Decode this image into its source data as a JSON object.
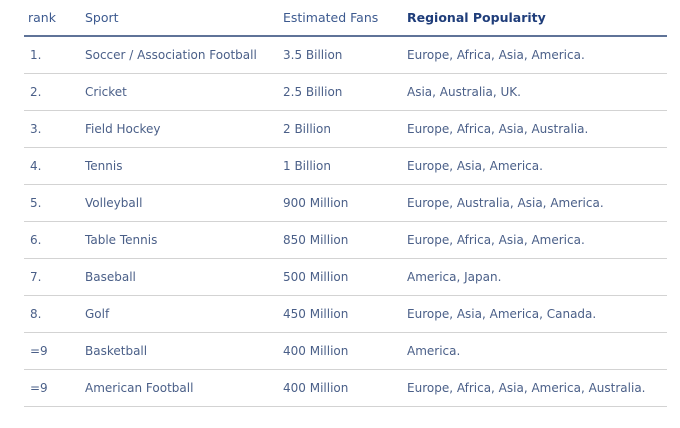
{
  "table": {
    "headers": {
      "rank": "rank",
      "sport": "Sport",
      "fans": "Estimated Fans",
      "region": "Regional Popularity"
    },
    "rows": [
      {
        "rank": "1.",
        "sport": "Soccer / Association Football",
        "fans": "3.5 Billion",
        "region": "Europe, Africa, Asia, America."
      },
      {
        "rank": "2.",
        "sport": "Cricket",
        "fans": "2.5 Billion",
        "region": "Asia, Australia, UK."
      },
      {
        "rank": "3.",
        "sport": "Field Hockey",
        "fans": "2 Billion",
        "region": "Europe, Africa, Asia, Australia."
      },
      {
        "rank": "4.",
        "sport": "Tennis",
        "fans": "1 Billion",
        "region": "Europe, Asia, America."
      },
      {
        "rank": "5.",
        "sport": "Volleyball",
        "fans": "900 Million",
        "region": "Europe, Australia, Asia, America."
      },
      {
        "rank": "6.",
        "sport": "Table Tennis",
        "fans": "850 Million",
        "region": "Europe, Africa, Asia, America."
      },
      {
        "rank": "7.",
        "sport": "Baseball",
        "fans": "500 Million",
        "region": "America, Japan."
      },
      {
        "rank": "8.",
        "sport": "Golf",
        "fans": "450 Million",
        "region": "Europe, Asia, America, Canada."
      },
      {
        "rank": "=9",
        "sport": "Basketball",
        "fans": "400 Million",
        "region": "America."
      },
      {
        "rank": "=9",
        "sport": "American Football",
        "fans": "400 Million",
        "region": "Europe, Africa, Asia, America, Australia."
      }
    ]
  }
}
